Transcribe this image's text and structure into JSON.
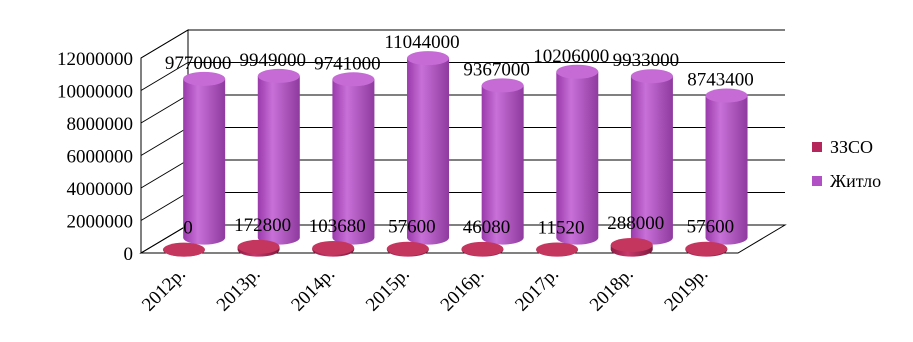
{
  "chart_data": {
    "type": "bar",
    "categories": [
      "2012р.",
      "2013р.",
      "2014р.",
      "2015р.",
      "2016р.",
      "2017р.",
      "2018р.",
      "2019р."
    ],
    "series": [
      {
        "name": "ЗЗСО",
        "values": [
          0,
          172800,
          103680,
          57600,
          46080,
          11520,
          288000,
          57600
        ],
        "color": "#b5265a"
      },
      {
        "name": "Житло",
        "values": [
          9770000,
          9949000,
          9741000,
          11044000,
          9367000,
          10206000,
          9933000,
          8743400
        ],
        "color": "#b150c5"
      }
    ],
    "y_ticks": [
      "0",
      "2000000",
      "4000000",
      "6000000",
      "8000000",
      "10000000",
      "12000000"
    ],
    "ylim": [
      0,
      12000000
    ],
    "legend_position": "right",
    "grid": true,
    "style": "3d-cylinder"
  }
}
